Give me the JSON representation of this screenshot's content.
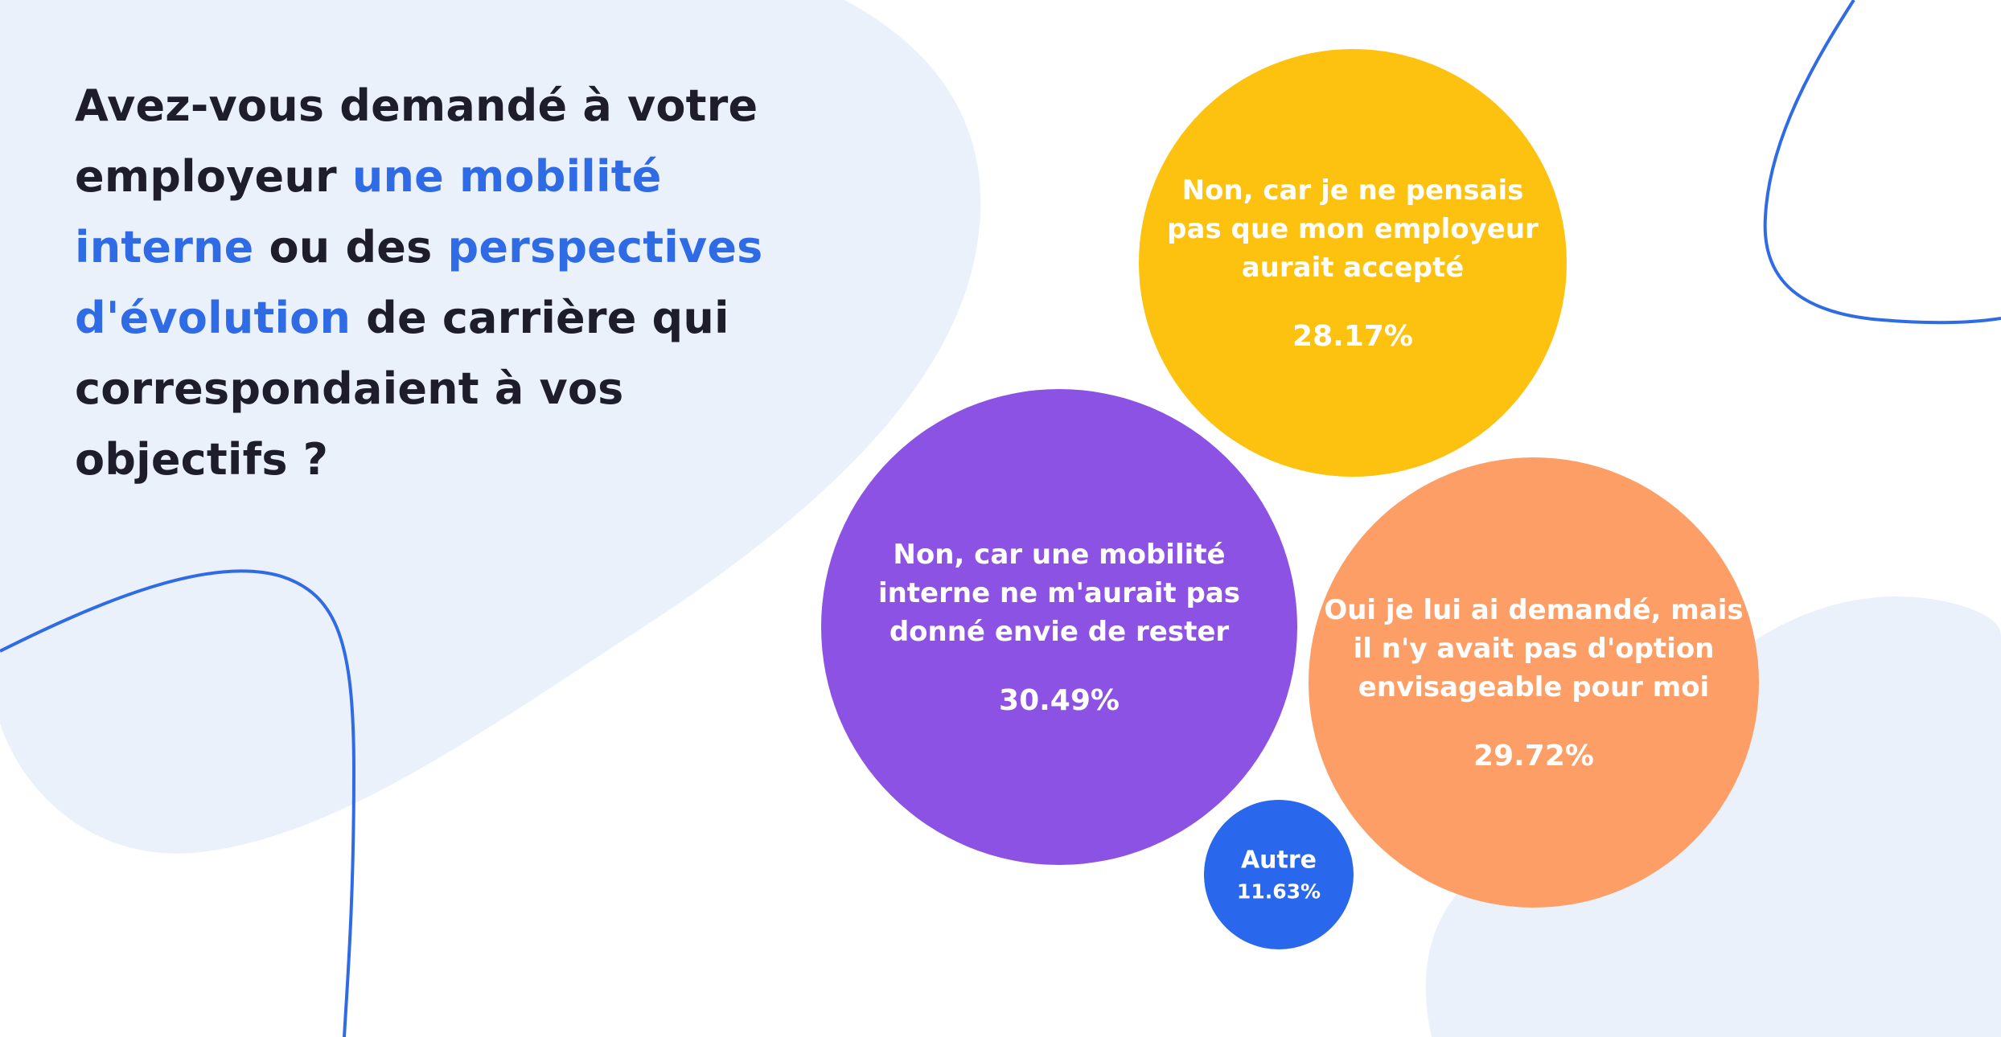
{
  "question": {
    "part1": "Avez-vous demandé à votre employeur ",
    "highlight1": "une mobilité interne",
    "part2": " ou des ",
    "highlight2": "perspectives d'évolution",
    "part3": " de carrière qui correspondaient à vos objectifs ?"
  },
  "colors": {
    "text": "#1d1d2b",
    "highlight": "#2f6be4",
    "blob": "#eaf1fb",
    "line": "#2f6be4"
  },
  "chart_data": {
    "type": "bubble",
    "title": "Avez-vous demandé à votre employeur une mobilité interne ou des perspectives d'évolution de carrière qui correspondaient à vos objectifs ?",
    "unit": "%",
    "items": [
      {
        "lines": [
          "Non, car je ne pensais",
          "pas que mon employeur",
          "aurait accepté"
        ],
        "value": 28.17,
        "label": "28.17%",
        "color": "#fdc20f"
      },
      {
        "lines": [
          "Non, car une mobilité",
          "interne ne m'aurait pas",
          "donné envie de rester"
        ],
        "value": 30.49,
        "label": "30.49%",
        "color": "#8c52e3"
      },
      {
        "lines": [
          "Oui je lui ai demandé, mais",
          "il n'y avait pas d'option",
          "envisageable pour moi"
        ],
        "value": 29.72,
        "label": "29.72%",
        "color": "#fd9e66"
      },
      {
        "lines": [
          "Autre"
        ],
        "value": 11.63,
        "label": "11.63%",
        "color": "#2968ec"
      }
    ]
  }
}
